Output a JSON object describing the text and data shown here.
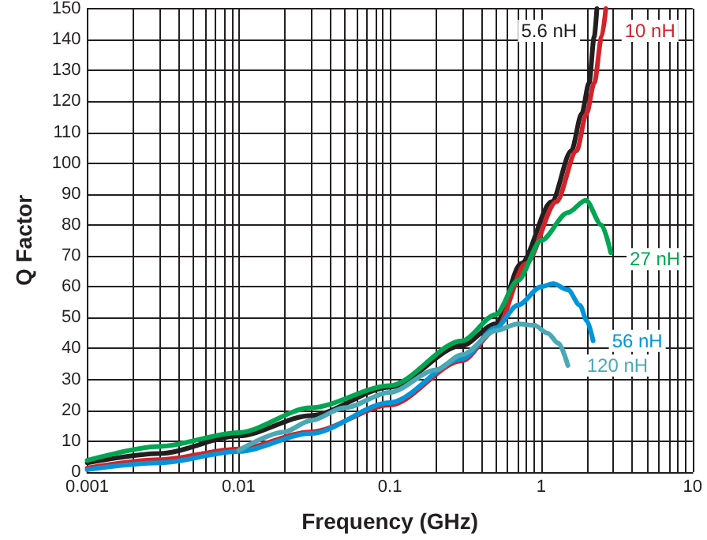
{
  "chart_data": {
    "type": "line",
    "xlabel": "Frequency (GHz)",
    "ylabel": "Q Factor",
    "log": "x",
    "xlim": [
      0.001,
      10
    ],
    "ylim": [
      0,
      150
    ],
    "xticks": [
      0.001,
      {
        "value": 0.002,
        "label": null
      },
      {
        "value": 0.003,
        "label": null
      },
      {
        "value": 0.004,
        "label": null
      },
      {
        "value": 0.005,
        "label": null
      },
      {
        "value": 0.006,
        "label": null
      },
      {
        "value": 0.007,
        "label": null
      },
      {
        "value": 0.008,
        "label": null
      },
      {
        "value": 0.009,
        "label": null
      },
      0.01,
      {
        "value": 0.02,
        "label": null
      },
      {
        "value": 0.03,
        "label": null
      },
      {
        "value": 0.04,
        "label": null
      },
      {
        "value": 0.05,
        "label": null
      },
      {
        "value": 0.06,
        "label": null
      },
      {
        "value": 0.07,
        "label": null
      },
      {
        "value": 0.08,
        "label": null
      },
      {
        "value": 0.09,
        "label": null
      },
      0.1,
      {
        "value": 0.2,
        "label": null
      },
      {
        "value": 0.3,
        "label": null
      },
      {
        "value": 0.4,
        "label": null
      },
      {
        "value": 0.5,
        "label": null
      },
      {
        "value": 0.6,
        "label": null
      },
      {
        "value": 0.7,
        "label": null
      },
      {
        "value": 0.8,
        "label": null
      },
      {
        "value": 0.9,
        "label": null
      },
      1,
      {
        "value": 2,
        "label": null
      },
      {
        "value": 3,
        "label": null
      },
      {
        "value": 4,
        "label": null
      },
      {
        "value": 5,
        "label": null
      },
      {
        "value": 6,
        "label": null
      },
      {
        "value": 7,
        "label": null
      },
      {
        "value": 8,
        "label": null
      },
      {
        "value": 9,
        "label": null
      },
      10
    ],
    "yticks": [
      0,
      10,
      20,
      30,
      40,
      50,
      60,
      70,
      80,
      90,
      100,
      110,
      120,
      130,
      140,
      150
    ],
    "grid": true,
    "legend": false,
    "marker": "none",
    "line_style": "solid",
    "series": [
      {
        "name": "5.6 nH",
        "color": "#231f20",
        "x": [
          0.001,
          0.003,
          0.01,
          0.03,
          0.1,
          0.3,
          0.5,
          0.736,
          1.17,
          1.58,
          1.85,
          2.07,
          2.24,
          2.33
        ],
        "values": [
          3,
          6,
          11.7,
          18.3,
          27.5,
          41,
          48,
          67.5,
          87.5,
          104,
          116,
          126,
          141,
          150
        ]
      },
      {
        "name": "10 nH",
        "color": "#d2232a",
        "x": [
          0.001,
          0.003,
          0.01,
          0.03,
          0.1,
          0.3,
          0.5,
          0.794,
          1.26,
          1.71,
          1.99,
          2.24,
          2.51,
          2.67
        ],
        "values": [
          1.3,
          4,
          7.5,
          13,
          21.7,
          36,
          46,
          67.5,
          87.5,
          104,
          116,
          126,
          141,
          150
        ]
      },
      {
        "name": "27 nH",
        "color": "#00a651",
        "x": [
          0.001,
          0.003,
          0.01,
          0.03,
          0.1,
          0.3,
          0.5,
          0.7,
          1,
          1.5,
          1.97,
          2.5,
          2.88
        ],
        "values": [
          3.8,
          8.3,
          12.8,
          20.8,
          28,
          42.5,
          51,
          62,
          75,
          84,
          88,
          80,
          71
        ]
      },
      {
        "name": "56 nH",
        "color": "#0095da",
        "x": [
          0.001,
          0.003,
          0.01,
          0.03,
          0.1,
          0.3,
          0.5,
          0.7,
          1,
          1.2,
          1.5,
          1.8,
          2,
          2.2
        ],
        "values": [
          0.8,
          3,
          6.7,
          12.5,
          22.5,
          36.7,
          46.7,
          54,
          60,
          61,
          59,
          54,
          49,
          42.5
        ]
      },
      {
        "name": "120 nH",
        "color": "#4aa9b5",
        "x": [
          0.01,
          0.02,
          0.03,
          0.05,
          0.1,
          0.2,
          0.3,
          0.5,
          0.7,
          0.9,
          1.1,
          1.3,
          1.5
        ],
        "values": [
          7,
          13,
          16.7,
          20.8,
          25.8,
          33,
          38,
          45.8,
          48,
          47.5,
          45,
          41.7,
          34.5
        ]
      }
    ]
  }
}
